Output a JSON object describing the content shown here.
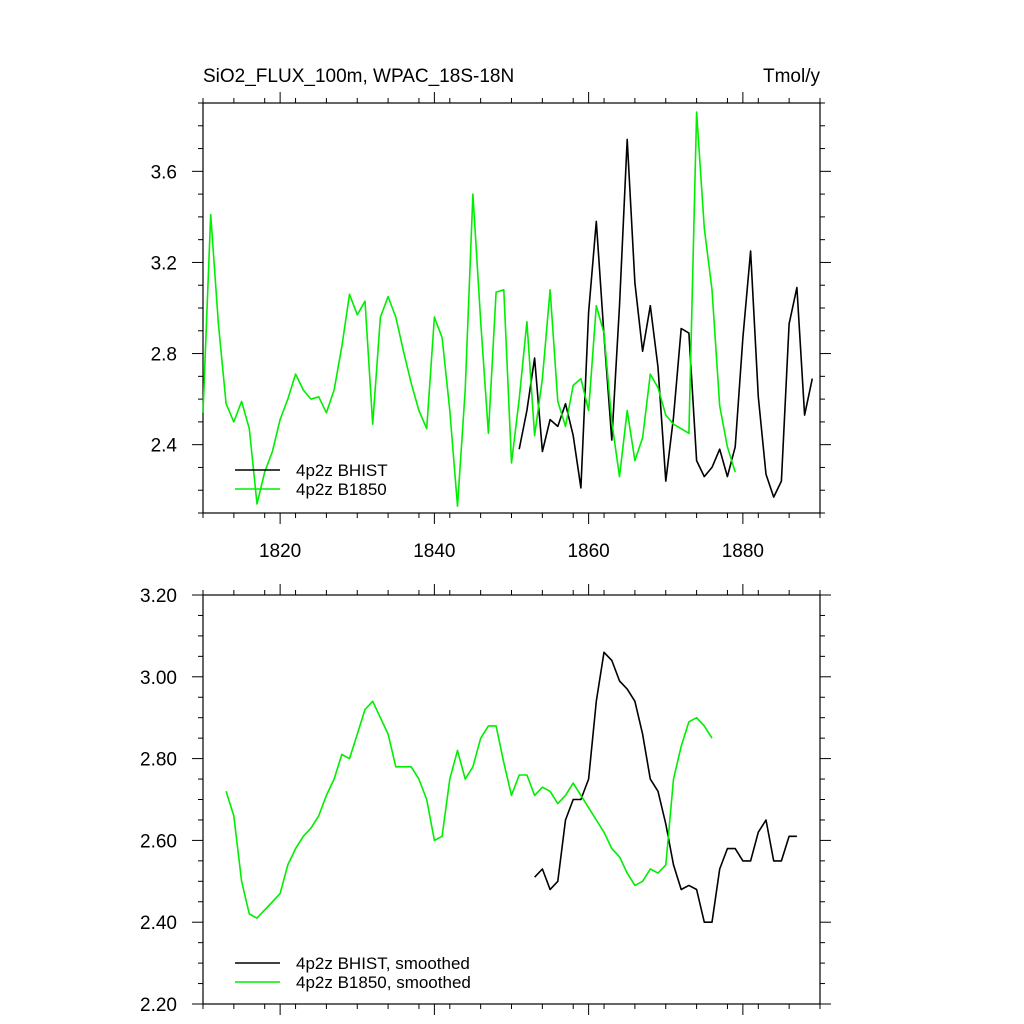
{
  "colors": {
    "BHIST": "#000000",
    "B1850": "#00ee00"
  },
  "chart_data": [
    {
      "type": "line",
      "title": "SiO2_FLUX_100m, WPAC_18S-18N",
      "units": "Tmol/y",
      "xlim": [
        1810,
        1890
      ],
      "ylim": [
        2.1,
        3.9
      ],
      "xticks": [
        1820,
        1840,
        1860,
        1880
      ],
      "xtick_labels": [
        "1820",
        "1840",
        "1860",
        "1880"
      ],
      "yticks": [
        2.4,
        2.8,
        3.2,
        3.6
      ],
      "ytick_labels": [
        "2.4",
        "2.8",
        "3.2",
        "3.6"
      ],
      "legend_position": "bottom-left",
      "series": [
        {
          "name": "4p2z BHIST",
          "color": "#000000",
          "x": [
            1851,
            1852,
            1853,
            1854,
            1855,
            1856,
            1857,
            1858,
            1859,
            1860,
            1861,
            1862,
            1863,
            1864,
            1865,
            1866,
            1867,
            1868,
            1869,
            1870,
            1871,
            1872,
            1873,
            1874,
            1875,
            1876,
            1877,
            1878,
            1879,
            1880,
            1881,
            1882,
            1883,
            1884,
            1885,
            1886,
            1887,
            1888,
            1889
          ],
          "y": [
            2.38,
            2.55,
            2.78,
            2.37,
            2.51,
            2.48,
            2.58,
            2.44,
            2.21,
            2.98,
            3.38,
            2.88,
            2.42,
            3.01,
            3.74,
            3.11,
            2.81,
            3.01,
            2.74,
            2.24,
            2.52,
            2.91,
            2.89,
            2.33,
            2.26,
            2.3,
            2.38,
            2.26,
            2.39,
            2.87,
            3.25,
            2.61,
            2.27,
            2.17,
            2.24,
            2.93,
            3.09,
            2.53,
            2.69
          ]
        },
        {
          "name": "4p2z B1850",
          "color": "#00ee00",
          "x": [
            1810,
            1811,
            1812,
            1813,
            1814,
            1815,
            1816,
            1817,
            1818,
            1819,
            1820,
            1821,
            1822,
            1823,
            1824,
            1825,
            1826,
            1827,
            1828,
            1829,
            1830,
            1831,
            1832,
            1833,
            1834,
            1835,
            1836,
            1837,
            1838,
            1839,
            1840,
            1841,
            1842,
            1843,
            1844,
            1845,
            1846,
            1847,
            1848,
            1849,
            1850,
            1851,
            1852,
            1853,
            1854,
            1855,
            1856,
            1857,
            1858,
            1859,
            1860,
            1861,
            1862,
            1863,
            1864,
            1865,
            1866,
            1867,
            1868,
            1869,
            1870,
            1871,
            1872,
            1873,
            1874,
            1875,
            1876,
            1877,
            1878,
            1879
          ],
          "y": [
            2.54,
            3.41,
            2.93,
            2.58,
            2.5,
            2.59,
            2.47,
            2.14,
            2.28,
            2.37,
            2.51,
            2.6,
            2.71,
            2.64,
            2.6,
            2.61,
            2.54,
            2.64,
            2.83,
            3.06,
            2.97,
            3.03,
            2.49,
            2.96,
            3.05,
            2.96,
            2.81,
            2.67,
            2.55,
            2.47,
            2.96,
            2.87,
            2.55,
            2.13,
            2.64,
            3.5,
            2.94,
            2.45,
            3.07,
            3.08,
            2.32,
            2.6,
            2.94,
            2.44,
            2.69,
            3.08,
            2.59,
            2.48,
            2.66,
            2.69,
            2.55,
            3.01,
            2.89,
            2.5,
            2.26,
            2.55,
            2.33,
            2.43,
            2.71,
            2.65,
            2.53,
            2.49,
            2.47,
            2.45,
            3.86,
            3.35,
            3.08,
            2.57,
            2.39,
            2.28
          ]
        }
      ]
    },
    {
      "type": "line",
      "xlim": [
        1810,
        1890
      ],
      "ylim": [
        2.2,
        3.2
      ],
      "xticks": [
        1820,
        1840,
        1860,
        1880
      ],
      "yticks": [
        2.2,
        2.4,
        2.6,
        2.8,
        3.0,
        3.2
      ],
      "ytick_labels": [
        "2.20",
        "2.40",
        "2.60",
        "2.80",
        "3.00",
        "3.20"
      ],
      "legend_position": "bottom-left",
      "series": [
        {
          "name": "4p2z BHIST, smoothed",
          "color": "#000000",
          "x": [
            1853,
            1854,
            1855,
            1856,
            1857,
            1858,
            1859,
            1860,
            1861,
            1862,
            1863,
            1864,
            1865,
            1866,
            1867,
            1868,
            1869,
            1870,
            1871,
            1872,
            1873,
            1874,
            1875,
            1876,
            1877,
            1878,
            1879,
            1880,
            1881,
            1882,
            1883,
            1884,
            1885,
            1886,
            1887
          ],
          "y": [
            2.51,
            2.53,
            2.48,
            2.5,
            2.65,
            2.7,
            2.7,
            2.75,
            2.94,
            3.06,
            3.04,
            2.99,
            2.97,
            2.94,
            2.86,
            2.75,
            2.72,
            2.64,
            2.54,
            2.48,
            2.49,
            2.48,
            2.4,
            2.4,
            2.53,
            2.58,
            2.58,
            2.55,
            2.55,
            2.62,
            2.65,
            2.55,
            2.55,
            2.61,
            2.61
          ]
        },
        {
          "name": "4p2z B1850, smoothed",
          "color": "#00ee00",
          "x": [
            1813,
            1814,
            1815,
            1816,
            1817,
            1818,
            1819,
            1820,
            1821,
            1822,
            1823,
            1824,
            1825,
            1826,
            1827,
            1828,
            1829,
            1830,
            1831,
            1832,
            1833,
            1834,
            1835,
            1836,
            1837,
            1838,
            1839,
            1840,
            1841,
            1842,
            1843,
            1844,
            1845,
            1846,
            1847,
            1848,
            1849,
            1850,
            1851,
            1852,
            1853,
            1854,
            1855,
            1856,
            1857,
            1858,
            1859,
            1860,
            1861,
            1862,
            1863,
            1864,
            1865,
            1866,
            1867,
            1868,
            1869,
            1870,
            1871,
            1872,
            1873,
            1874,
            1875,
            1876
          ],
          "y": [
            2.72,
            2.66,
            2.5,
            2.42,
            2.41,
            2.43,
            2.45,
            2.47,
            2.54,
            2.58,
            2.61,
            2.63,
            2.66,
            2.71,
            2.75,
            2.81,
            2.8,
            2.86,
            2.92,
            2.94,
            2.9,
            2.86,
            2.78,
            2.78,
            2.78,
            2.75,
            2.7,
            2.6,
            2.61,
            2.75,
            2.82,
            2.75,
            2.78,
            2.85,
            2.88,
            2.88,
            2.79,
            2.71,
            2.76,
            2.76,
            2.71,
            2.73,
            2.72,
            2.69,
            2.71,
            2.74,
            2.71,
            2.68,
            2.65,
            2.62,
            2.58,
            2.56,
            2.52,
            2.49,
            2.5,
            2.53,
            2.52,
            2.54,
            2.75,
            2.83,
            2.89,
            2.9,
            2.88,
            2.85
          ]
        }
      ]
    }
  ]
}
